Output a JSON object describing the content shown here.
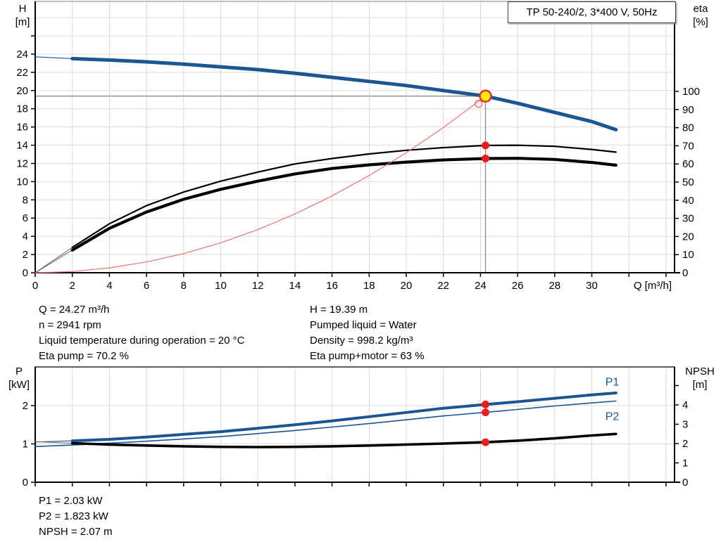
{
  "page": {
    "title_box": "TP 50-240/2, 3*400 V, 50Hz"
  },
  "colors": {
    "blue": "#1b5693",
    "black": "#000000",
    "light_red": "#f37070",
    "red_dot": "#ee1c1c",
    "yellow": "#ffe900",
    "grid": "#d9d9d9",
    "crosshair": "#8c8c8c",
    "frame_top": "#999999"
  },
  "info_top_left": [
    "Q = 24.27 m³/h",
    "n = 2941 rpm",
    "Liquid temperature during operation = 20 °C",
    "Eta pump = 70.2 %"
  ],
  "info_top_right": [
    "H = 19.39 m",
    "Pumped liquid = Water",
    "Density = 998.2 kg/m³",
    "Eta pump+motor = 63 %"
  ],
  "info_bottom": [
    "P1 = 2.03 kW",
    "P2 = 1.823 kW",
    "NPSH = 2.07 m"
  ],
  "axis_labels": {
    "top_left_1": "H",
    "top_left_2": "[m]",
    "top_right_1": "eta",
    "top_right_2": "[%]",
    "x_unit": "Q [m³/h]",
    "bottom_left_1": "P",
    "bottom_left_2": "[kW]",
    "bottom_right_1": "NPSH",
    "bottom_right_2": "[m]"
  },
  "chart_data": [
    {
      "name": "head-efficiency-curves",
      "type": "line",
      "title": "TP 50-240/2, 3*400 V, 50Hz",
      "xlabel": "Q [m³/h]",
      "ylabel_left": "H [m]",
      "ylabel_right": "eta [%]",
      "xlim": [
        0,
        34.5
      ],
      "ylim_left": [
        0,
        29.8
      ],
      "ylim_right": [
        0,
        149
      ],
      "grid": true,
      "xticks": [
        0,
        2,
        4,
        6,
        8,
        10,
        12,
        14,
        16,
        18,
        20,
        22,
        24,
        26,
        28,
        30
      ],
      "xticks_unlabeled": [
        32,
        34
      ],
      "yticks_left": [
        0,
        2,
        4,
        6,
        8,
        10,
        12,
        14,
        16,
        18,
        20,
        22,
        24
      ],
      "yticks_left_unlabeled": [
        26
      ],
      "yticks_right": [
        0,
        10,
        20,
        30,
        40,
        50,
        60,
        70,
        80,
        90,
        100
      ],
      "yticks_right_unlabeled": [],
      "series": [
        {
          "name": "H-curve",
          "axis": "left",
          "color": "blue",
          "width": 5,
          "thin_lead_q": 2,
          "lead_color": "blue",
          "points": [
            [
              0,
              23.7
            ],
            [
              2,
              23.5
            ],
            [
              4,
              23.35
            ],
            [
              6,
              23.15
            ],
            [
              8,
              22.9
            ],
            [
              10,
              22.6
            ],
            [
              12,
              22.3
            ],
            [
              14,
              21.9
            ],
            [
              16,
              21.45
            ],
            [
              18,
              21.0
            ],
            [
              20,
              20.55
            ],
            [
              22,
              20.0
            ],
            [
              24.27,
              19.39
            ],
            [
              26,
              18.6
            ],
            [
              28,
              17.6
            ],
            [
              30,
              16.6
            ],
            [
              31.3,
              15.7
            ]
          ]
        },
        {
          "name": "eta-pump-curve",
          "axis": "right",
          "color": "black",
          "width": 2.2,
          "thin_lead_q": 2,
          "lead_color": "#6a6a6a",
          "points": [
            [
              0,
              0
            ],
            [
              2,
              14
            ],
            [
              4,
              27
            ],
            [
              6,
              37
            ],
            [
              8,
              44.5
            ],
            [
              10,
              50.5
            ],
            [
              12,
              55.5
            ],
            [
              14,
              60
            ],
            [
              16,
              63
            ],
            [
              18,
              65.5
            ],
            [
              20,
              67.5
            ],
            [
              22,
              69
            ],
            [
              24.27,
              70.2
            ],
            [
              26,
              70.3
            ],
            [
              28,
              69.7
            ],
            [
              30,
              68
            ],
            [
              31.3,
              66.5
            ]
          ]
        },
        {
          "name": "eta-pump-motor-curve",
          "axis": "right",
          "color": "black",
          "width": 4.2,
          "thin_lead_q": 2,
          "lead_color": "#6a6a6a",
          "points": [
            [
              0,
              0
            ],
            [
              2,
              12.5
            ],
            [
              4,
              24.5
            ],
            [
              6,
              33.5
            ],
            [
              8,
              40.5
            ],
            [
              10,
              46
            ],
            [
              12,
              50.5
            ],
            [
              14,
              54.5
            ],
            [
              16,
              57.5
            ],
            [
              18,
              59.5
            ],
            [
              20,
              61
            ],
            [
              22,
              62.2
            ],
            [
              24.27,
              63
            ],
            [
              26,
              63.1
            ],
            [
              28,
              62.5
            ],
            [
              30,
              60.8
            ],
            [
              31.3,
              59.3
            ]
          ]
        },
        {
          "name": "system-curve",
          "axis": "left",
          "color": "light_red",
          "width": 1.2,
          "points": [
            [
              0,
              0
            ],
            [
              2,
              0.13
            ],
            [
              4,
              0.53
            ],
            [
              6,
              1.18
            ],
            [
              8,
              2.1
            ],
            [
              10,
              3.29
            ],
            [
              12,
              4.74
            ],
            [
              14,
              6.45
            ],
            [
              16,
              8.43
            ],
            [
              18,
              10.67
            ],
            [
              20,
              13.17
            ],
            [
              22,
              15.93
            ],
            [
              24.27,
              19.39
            ]
          ]
        }
      ],
      "markers": [
        {
          "name": "system-curve-end-marker",
          "style": "open",
          "axis": "left",
          "q": 23.9,
          "v": 18.55
        },
        {
          "name": "eta-pump-point",
          "style": "dot",
          "axis": "right",
          "q": 24.27,
          "v": 70.2
        },
        {
          "name": "eta-pump-motor-point",
          "style": "dot",
          "axis": "right",
          "q": 24.27,
          "v": 63
        },
        {
          "name": "duty-point",
          "style": "duty",
          "axis": "left",
          "q": 24.27,
          "v": 19.39
        }
      ],
      "crosshair": {
        "q": 24.27,
        "h": 19.39
      },
      "duty_point": {
        "Q_m3h": 24.27,
        "H_m": 19.39,
        "eta_pump_pct": 70.2,
        "eta_pump_motor_pct": 63
      }
    },
    {
      "name": "power-npsh-curves",
      "type": "line",
      "xlabel": "",
      "ylabel_left": "P [kW]",
      "ylabel_right": "NPSH [m]",
      "xlim": [
        0,
        34.5
      ],
      "ylim_left": [
        0,
        3
      ],
      "ylim_right": [
        0,
        6
      ],
      "grid": true,
      "xticks": [],
      "xticks_unlabeled": [
        0,
        2,
        4,
        6,
        8,
        10,
        12,
        14,
        16,
        18,
        20,
        22,
        24,
        26,
        28,
        30,
        32,
        34
      ],
      "yticks_left": [
        0,
        1,
        2
      ],
      "yticks_left_unlabeled": [],
      "yticks_right": [
        0,
        1,
        2,
        3,
        4
      ],
      "yticks_right_unlabeled": [
        5
      ],
      "series": [
        {
          "name": "P1-curve",
          "label": "P1",
          "axis": "left",
          "color": "blue",
          "width": 4,
          "thin_lead_q": 2,
          "lead_color": "blue",
          "points": [
            [
              0,
              1.05
            ],
            [
              2,
              1.08
            ],
            [
              4,
              1.12
            ],
            [
              6,
              1.18
            ],
            [
              8,
              1.25
            ],
            [
              10,
              1.32
            ],
            [
              12,
              1.41
            ],
            [
              14,
              1.5
            ],
            [
              16,
              1.6
            ],
            [
              18,
              1.71
            ],
            [
              20,
              1.82
            ],
            [
              22,
              1.93
            ],
            [
              24.27,
              2.03
            ],
            [
              26,
              2.1
            ],
            [
              28,
              2.19
            ],
            [
              30,
              2.28
            ],
            [
              31.3,
              2.33
            ]
          ]
        },
        {
          "name": "P2-curve",
          "label": "P2",
          "axis": "left",
          "color": "blue",
          "width": 1.6,
          "points": [
            [
              0,
              0.93
            ],
            [
              2,
              0.97
            ],
            [
              4,
              1.02
            ],
            [
              6,
              1.07
            ],
            [
              8,
              1.13
            ],
            [
              10,
              1.19
            ],
            [
              12,
              1.27
            ],
            [
              14,
              1.35
            ],
            [
              16,
              1.44
            ],
            [
              18,
              1.53
            ],
            [
              20,
              1.63
            ],
            [
              22,
              1.73
            ],
            [
              24.27,
              1.823
            ],
            [
              26,
              1.9
            ],
            [
              28,
              1.99
            ],
            [
              30,
              2.07
            ],
            [
              31.3,
              2.12
            ]
          ]
        },
        {
          "name": "NPSH-curve",
          "axis": "right",
          "color": "black",
          "width": 3.6,
          "thin_lead_q": 2,
          "lead_color": "#6a6a6a",
          "points": [
            [
              0,
              2.1
            ],
            [
              2,
              2.02
            ],
            [
              4,
              1.95
            ],
            [
              6,
              1.9
            ],
            [
              8,
              1.86
            ],
            [
              10,
              1.83
            ],
            [
              12,
              1.82
            ],
            [
              14,
              1.83
            ],
            [
              16,
              1.86
            ],
            [
              18,
              1.9
            ],
            [
              20,
              1.95
            ],
            [
              22,
              2.0
            ],
            [
              24.27,
              2.07
            ],
            [
              26,
              2.15
            ],
            [
              28,
              2.27
            ],
            [
              30,
              2.42
            ],
            [
              31.3,
              2.5
            ]
          ]
        }
      ],
      "series_labels": [
        {
          "text": "P1",
          "q": 31.1,
          "v": 2.52,
          "axis": "left"
        },
        {
          "text": "P2",
          "q": 31.1,
          "v": 1.62,
          "axis": "left"
        }
      ],
      "markers": [
        {
          "name": "p1-point",
          "style": "dot",
          "axis": "left",
          "q": 24.27,
          "v": 2.03
        },
        {
          "name": "p2-point",
          "style": "dot",
          "axis": "left",
          "q": 24.27,
          "v": 1.823
        },
        {
          "name": "npsh-point",
          "style": "dot",
          "axis": "right",
          "q": 24.27,
          "v": 2.07
        }
      ],
      "duty_point": {
        "P1_kW": 2.03,
        "P2_kW": 1.823,
        "NPSH_m": 2.07
      }
    }
  ]
}
